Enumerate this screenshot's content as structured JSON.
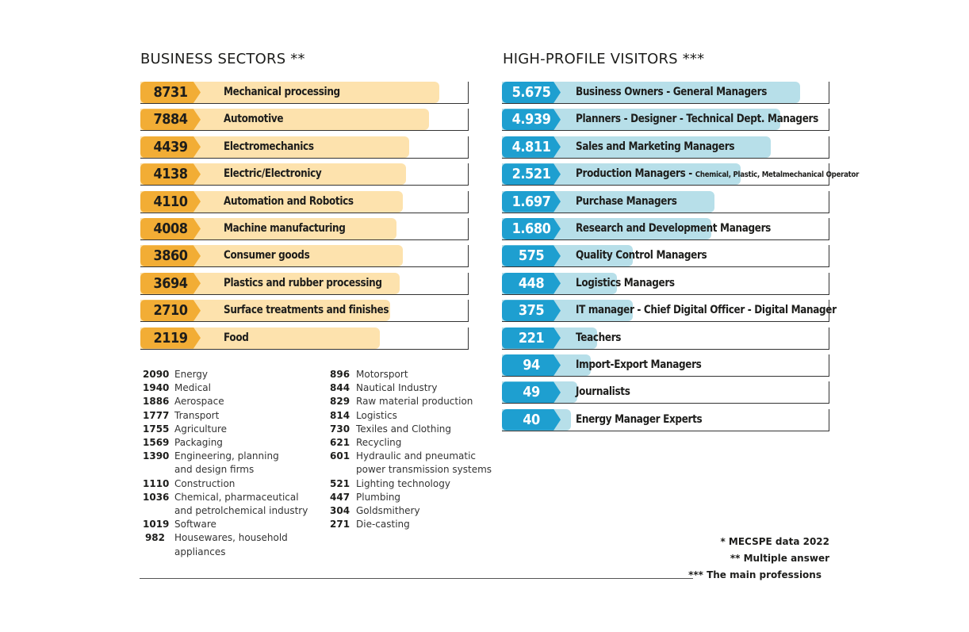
{
  "chart_data": [
    {
      "type": "bar",
      "title": "BUSINESS SECTORS **",
      "categories": [
        "Mechanical processing",
        "Automotive",
        "Electromechanics",
        "Electric/Electronicy",
        "Automation and Robotics",
        "Machine manufacturing",
        "Consumer goods",
        "Plastics and rubber processing",
        "Surface treatments and finishes",
        "Food"
      ],
      "value_labels": [
        "8731",
        "7884",
        "4439",
        "4138",
        "4110",
        "4008",
        "3860",
        "3694",
        "2710",
        "2119"
      ],
      "values": [
        8731,
        7884,
        4439,
        4138,
        4110,
        4008,
        3860,
        3694,
        2710,
        2119
      ],
      "fill_fraction": [
        0.91,
        0.88,
        0.82,
        0.81,
        0.8,
        0.78,
        0.8,
        0.79,
        0.76,
        0.73
      ],
      "colors": {
        "badge": "#f2ad35",
        "fill": "#fde2ad"
      }
    },
    {
      "type": "bar",
      "title": "HIGH-PROFILE VISITORS ***",
      "categories": [
        {
          "main": "Business Owners - General Managers",
          "small": ""
        },
        {
          "main": "Planners - Designer - Technical Dept. Managers",
          "small": ""
        },
        {
          "main": "Sales and Marketing Managers",
          "small": ""
        },
        {
          "main": "Production Managers - ",
          "small": "Chemical, Plastic, Metalmechanical Operator"
        },
        {
          "main": "Purchase Managers",
          "small": ""
        },
        {
          "main": "Research and Development Managers",
          "small": ""
        },
        {
          "main": "Quality Control Managers",
          "small": ""
        },
        {
          "main": "Logistics Managers",
          "small": ""
        },
        {
          "main": "IT manager - Chief Digital Officer - Digital Manager",
          "small": ""
        },
        {
          "main": "Teachers",
          "small": ""
        },
        {
          "main": "Import-Export Managers",
          "small": ""
        },
        {
          "main": "Journalists",
          "small": ""
        },
        {
          "main": "Energy Manager Experts",
          "small": ""
        }
      ],
      "value_labels": [
        "5.675",
        "4.939",
        "4.811",
        "2.521",
        "1.697",
        "1.680",
        "575",
        "448",
        "375",
        "221",
        "94",
        "49",
        "40"
      ],
      "values": [
        5675,
        4939,
        4811,
        2521,
        1697,
        1680,
        575,
        448,
        375,
        221,
        94,
        49,
        40
      ],
      "fill_fraction": [
        0.91,
        0.85,
        0.82,
        0.73,
        0.65,
        0.64,
        0.4,
        0.35,
        0.4,
        0.29,
        0.27,
        0.23,
        0.21
      ],
      "colors": {
        "badge": "#1e9fd0",
        "fill": "#b7dfe9"
      }
    }
  ],
  "other_sectors": {
    "col1": [
      {
        "value": "2090",
        "name": "Energy"
      },
      {
        "value": "1940",
        "name": "Medical"
      },
      {
        "value": "1886",
        "name": "Aerospace"
      },
      {
        "value": "1777",
        "name": "Transport"
      },
      {
        "value": "1755",
        "name": "Agriculture"
      },
      {
        "value": "1569",
        "name": "Packaging"
      },
      {
        "value": "1390",
        "name": "Engineering, planning\nand design firms"
      },
      {
        "value": "1110",
        "name": "Construction"
      },
      {
        "value": "1036",
        "name": "Chemical, pharmaceutical\nand petrolchemical industry"
      },
      {
        "value": "1019",
        "name": "Software"
      },
      {
        "value": "982",
        "name": "Housewares, household\nappliances"
      }
    ],
    "col2": [
      {
        "value": "896",
        "name": "Motorsport"
      },
      {
        "value": "844",
        "name": "Nautical Industry"
      },
      {
        "value": "829",
        "name": "Raw material production"
      },
      {
        "value": "814",
        "name": "Logistics"
      },
      {
        "value": "730",
        "name": "Texiles and Clothing"
      },
      {
        "value": "621",
        "name": "Recycling"
      },
      {
        "value": "601",
        "name": "Hydraulic and pneumatic\npower transmission systems"
      },
      {
        "value": "521",
        "name": "Lighting technology"
      },
      {
        "value": "447",
        "name": "Plumbing"
      },
      {
        "value": "304",
        "name": "Goldsmithery"
      },
      {
        "value": "271",
        "name": "Die-casting"
      }
    ]
  },
  "notes": {
    "source": "* MECSPE data 2022",
    "multiple": "**  Multiple answer",
    "professions": "*** The main professions"
  }
}
